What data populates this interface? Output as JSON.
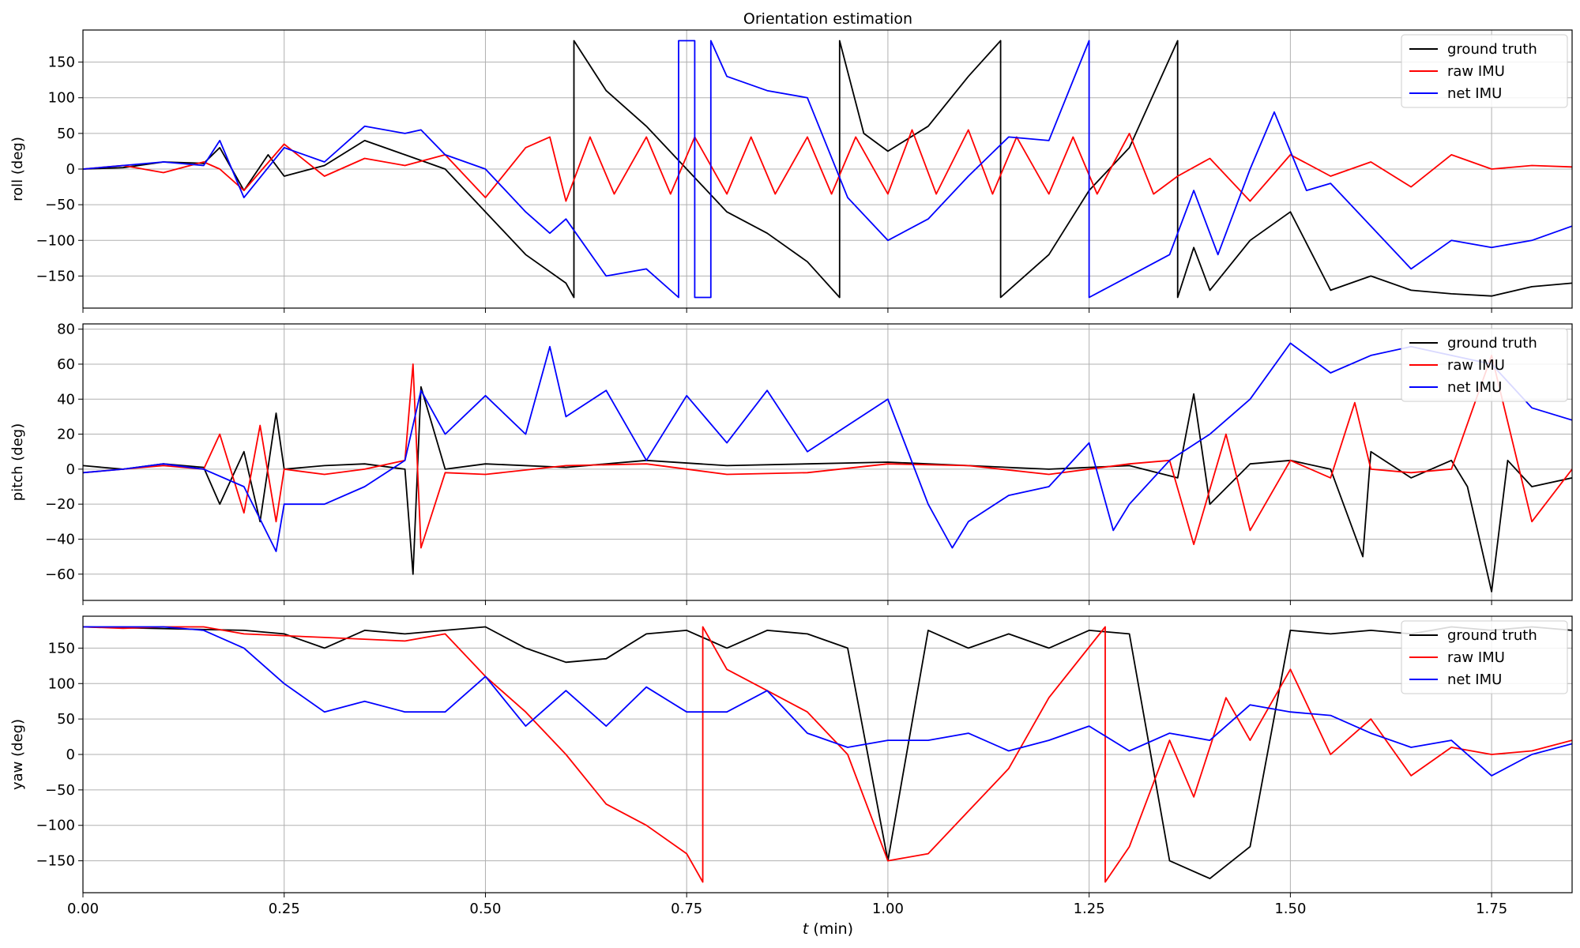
{
  "title": "Orientation estimation",
  "xlabel": "t (min)",
  "xlabel_italic": "t",
  "xlabel_unit": " (min)",
  "colors": {
    "ground_truth": "#000000",
    "raw_imu": "#ff0000",
    "net_imu": "#0000ff",
    "grid": "#b0b0b0"
  },
  "legend_labels": [
    "ground truth",
    "raw IMU",
    "net IMU"
  ],
  "chart_data": [
    {
      "type": "line",
      "panel": "roll",
      "title": "Orientation estimation",
      "xlabel": "",
      "ylabel": "roll (deg)",
      "xlim": [
        0,
        1.85
      ],
      "ylim": [
        -195,
        195
      ],
      "xticks": [
        0.0,
        0.25,
        0.5,
        0.75,
        1.0,
        1.25,
        1.5,
        1.75
      ],
      "yticks": [
        -150,
        -100,
        -50,
        0,
        50,
        100,
        150
      ],
      "grid": true,
      "legend_position": "top-right",
      "series": [
        {
          "name": "ground truth",
          "x": [
            0,
            0.05,
            0.1,
            0.15,
            0.17,
            0.2,
            0.23,
            0.25,
            0.3,
            0.35,
            0.4,
            0.45,
            0.5,
            0.55,
            0.6,
            0.61,
            0.61,
            0.65,
            0.7,
            0.75,
            0.8,
            0.85,
            0.9,
            0.94,
            0.94,
            0.97,
            1.0,
            1.05,
            1.1,
            1.14,
            1.14,
            1.2,
            1.25,
            1.3,
            1.36,
            1.36,
            1.38,
            1.4,
            1.45,
            1.5,
            1.55,
            1.6,
            1.65,
            1.7,
            1.75,
            1.8,
            1.85
          ],
          "y": [
            0,
            2,
            10,
            8,
            30,
            -30,
            20,
            -10,
            5,
            40,
            20,
            0,
            -60,
            -120,
            -160,
            -180,
            180,
            110,
            60,
            0,
            -60,
            -90,
            -130,
            -180,
            180,
            50,
            25,
            60,
            130,
            180,
            -180,
            -120,
            -30,
            30,
            180,
            -180,
            -110,
            -170,
            -100,
            -60,
            -170,
            -150,
            -170,
            -175,
            -178,
            -165,
            -160
          ]
        },
        {
          "name": "raw IMU",
          "x": [
            0,
            0.05,
            0.1,
            0.15,
            0.17,
            0.2,
            0.25,
            0.3,
            0.35,
            0.4,
            0.45,
            0.5,
            0.55,
            0.58,
            0.6,
            0.63,
            0.66,
            0.7,
            0.73,
            0.76,
            0.8,
            0.83,
            0.86,
            0.9,
            0.93,
            0.96,
            1.0,
            1.03,
            1.06,
            1.1,
            1.13,
            1.16,
            1.2,
            1.23,
            1.26,
            1.3,
            1.33,
            1.36,
            1.4,
            1.45,
            1.5,
            1.55,
            1.6,
            1.65,
            1.7,
            1.75,
            1.8,
            1.85
          ],
          "y": [
            0,
            5,
            -5,
            10,
            0,
            -30,
            35,
            -10,
            15,
            5,
            20,
            -40,
            30,
            45,
            -45,
            45,
            -35,
            45,
            -35,
            45,
            -35,
            45,
            -35,
            45,
            -35,
            45,
            -35,
            55,
            -35,
            55,
            -35,
            45,
            -35,
            45,
            -35,
            50,
            -35,
            -10,
            15,
            -45,
            20,
            -10,
            10,
            -25,
            20,
            0,
            5,
            3
          ]
        },
        {
          "name": "net IMU",
          "x": [
            0,
            0.05,
            0.1,
            0.15,
            0.17,
            0.2,
            0.25,
            0.3,
            0.35,
            0.4,
            0.42,
            0.45,
            0.5,
            0.55,
            0.58,
            0.6,
            0.65,
            0.7,
            0.74,
            0.74,
            0.76,
            0.76,
            0.78,
            0.78,
            0.8,
            0.85,
            0.9,
            0.95,
            1.0,
            1.05,
            1.1,
            1.15,
            1.2,
            1.25,
            1.25,
            1.3,
            1.35,
            1.38,
            1.41,
            1.45,
            1.48,
            1.52,
            1.55,
            1.6,
            1.65,
            1.7,
            1.75,
            1.8,
            1.85
          ],
          "y": [
            0,
            5,
            10,
            5,
            40,
            -40,
            30,
            10,
            60,
            50,
            55,
            20,
            0,
            -60,
            -90,
            -70,
            -150,
            -140,
            -180,
            180,
            180,
            -180,
            -180,
            180,
            130,
            110,
            100,
            -40,
            -100,
            -70,
            -10,
            45,
            40,
            180,
            -180,
            -150,
            -120,
            -30,
            -120,
            0,
            80,
            -30,
            -20,
            -80,
            -140,
            -100,
            -110,
            -100,
            -80
          ]
        }
      ]
    },
    {
      "type": "line",
      "panel": "pitch",
      "title": "",
      "xlabel": "",
      "ylabel": "pitch (deg)",
      "xlim": [
        0,
        1.85
      ],
      "ylim": [
        -75,
        83
      ],
      "xticks": [
        0.0,
        0.25,
        0.5,
        0.75,
        1.0,
        1.25,
        1.5,
        1.75
      ],
      "yticks": [
        -60,
        -40,
        -20,
        0,
        20,
        40,
        60,
        80
      ],
      "grid": true,
      "legend_position": "top-right",
      "series": [
        {
          "name": "ground truth",
          "x": [
            0,
            0.05,
            0.1,
            0.15,
            0.17,
            0.2,
            0.22,
            0.24,
            0.25,
            0.3,
            0.35,
            0.4,
            0.41,
            0.42,
            0.45,
            0.5,
            0.6,
            0.7,
            0.8,
            0.9,
            1.0,
            1.1,
            1.2,
            1.3,
            1.36,
            1.38,
            1.4,
            1.45,
            1.5,
            1.55,
            1.59,
            1.6,
            1.65,
            1.7,
            1.72,
            1.75,
            1.77,
            1.8,
            1.85
          ],
          "y": [
            2,
            0,
            3,
            1,
            -20,
            10,
            -30,
            32,
            0,
            2,
            3,
            0,
            -60,
            47,
            0,
            3,
            1,
            5,
            2,
            3,
            4,
            2,
            0,
            2,
            -5,
            43,
            -20,
            3,
            5,
            0,
            -50,
            10,
            -5,
            5,
            -10,
            -70,
            5,
            -10,
            -5
          ]
        },
        {
          "name": "raw IMU",
          "x": [
            0,
            0.05,
            0.1,
            0.15,
            0.17,
            0.2,
            0.22,
            0.24,
            0.25,
            0.3,
            0.35,
            0.4,
            0.41,
            0.42,
            0.45,
            0.5,
            0.6,
            0.7,
            0.8,
            0.9,
            1.0,
            1.1,
            1.2,
            1.3,
            1.35,
            1.38,
            1.42,
            1.45,
            1.5,
            1.55,
            1.58,
            1.6,
            1.65,
            1.7,
            1.75,
            1.8,
            1.85
          ],
          "y": [
            -2,
            0,
            2,
            0,
            20,
            -25,
            25,
            -30,
            0,
            -3,
            0,
            5,
            60,
            -45,
            -2,
            -3,
            2,
            3,
            -3,
            -2,
            3,
            2,
            -3,
            3,
            5,
            -43,
            20,
            -35,
            5,
            -5,
            38,
            0,
            -2,
            0,
            65,
            -30,
            0
          ]
        },
        {
          "name": "net IMU",
          "x": [
            0,
            0.05,
            0.1,
            0.15,
            0.2,
            0.24,
            0.25,
            0.3,
            0.35,
            0.4,
            0.42,
            0.45,
            0.5,
            0.55,
            0.58,
            0.6,
            0.65,
            0.7,
            0.75,
            0.8,
            0.85,
            0.9,
            0.95,
            1.0,
            1.05,
            1.08,
            1.1,
            1.15,
            1.2,
            1.25,
            1.28,
            1.3,
            1.35,
            1.4,
            1.45,
            1.5,
            1.55,
            1.6,
            1.65,
            1.7,
            1.75,
            1.8,
            1.85
          ],
          "y": [
            -2,
            0,
            3,
            0,
            -10,
            -47,
            -20,
            -20,
            -10,
            5,
            45,
            20,
            42,
            20,
            70,
            30,
            45,
            5,
            42,
            15,
            45,
            10,
            25,
            40,
            -20,
            -45,
            -30,
            -15,
            -10,
            15,
            -35,
            -20,
            5,
            20,
            40,
            72,
            55,
            65,
            70,
            65,
            60,
            35,
            28
          ]
        }
      ]
    },
    {
      "type": "line",
      "panel": "yaw",
      "title": "",
      "xlabel": "t (min)",
      "ylabel": "yaw (deg)",
      "xlim": [
        0,
        1.85
      ],
      "ylim": [
        -195,
        195
      ],
      "xticks": [
        0.0,
        0.25,
        0.5,
        0.75,
        1.0,
        1.25,
        1.5,
        1.75
      ],
      "yticks": [
        -150,
        -100,
        -50,
        0,
        50,
        100,
        150
      ],
      "grid": true,
      "legend_position": "top-right",
      "series": [
        {
          "name": "ground truth",
          "x": [
            0,
            0.2,
            0.25,
            0.3,
            0.35,
            0.4,
            0.45,
            0.5,
            0.55,
            0.6,
            0.65,
            0.7,
            0.75,
            0.8,
            0.85,
            0.9,
            0.95,
            1.0,
            1.05,
            1.1,
            1.15,
            1.2,
            1.25,
            1.3,
            1.35,
            1.4,
            1.45,
            1.5,
            1.55,
            1.6,
            1.65,
            1.7,
            1.75,
            1.8,
            1.85
          ],
          "y": [
            180,
            175,
            170,
            150,
            175,
            170,
            175,
            180,
            150,
            130,
            135,
            170,
            175,
            150,
            175,
            170,
            150,
            -150,
            175,
            150,
            170,
            150,
            175,
            170,
            -150,
            -175,
            -130,
            175,
            170,
            175,
            170,
            180,
            175,
            180,
            175
          ]
        },
        {
          "name": "raw IMU",
          "x": [
            0,
            0.05,
            0.1,
            0.15,
            0.2,
            0.3,
            0.4,
            0.45,
            0.5,
            0.55,
            0.6,
            0.65,
            0.7,
            0.75,
            0.77,
            0.77,
            0.8,
            0.85,
            0.9,
            0.95,
            1.0,
            1.05,
            1.1,
            1.15,
            1.2,
            1.27,
            1.27,
            1.3,
            1.35,
            1.38,
            1.42,
            1.45,
            1.5,
            1.55,
            1.6,
            1.65,
            1.7,
            1.75,
            1.8,
            1.85
          ],
          "y": [
            180,
            178,
            180,
            180,
            170,
            165,
            160,
            170,
            110,
            60,
            0,
            -70,
            -100,
            -140,
            -180,
            180,
            120,
            90,
            60,
            0,
            -150,
            -140,
            -80,
            -20,
            80,
            180,
            -180,
            -130,
            20,
            -60,
            80,
            20,
            120,
            0,
            50,
            -30,
            10,
            0,
            5,
            20
          ]
        },
        {
          "name": "net IMU",
          "x": [
            0,
            0.1,
            0.15,
            0.2,
            0.25,
            0.3,
            0.35,
            0.4,
            0.45,
            0.5,
            0.55,
            0.6,
            0.65,
            0.7,
            0.75,
            0.8,
            0.85,
            0.9,
            0.95,
            1.0,
            1.05,
            1.1,
            1.15,
            1.2,
            1.25,
            1.3,
            1.35,
            1.4,
            1.45,
            1.5,
            1.55,
            1.6,
            1.65,
            1.7,
            1.75,
            1.8,
            1.85
          ],
          "y": [
            180,
            180,
            175,
            150,
            100,
            60,
            75,
            60,
            60,
            110,
            40,
            90,
            40,
            95,
            60,
            60,
            90,
            30,
            10,
            20,
            20,
            30,
            5,
            20,
            40,
            5,
            30,
            20,
            70,
            60,
            55,
            30,
            10,
            20,
            -30,
            0,
            15
          ]
        }
      ]
    }
  ]
}
